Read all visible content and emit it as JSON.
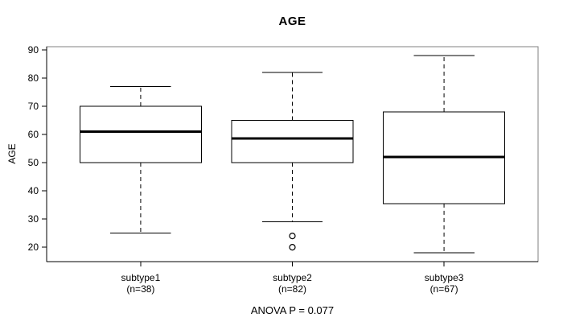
{
  "chart_data": {
    "type": "boxplot",
    "title": "AGE",
    "ylabel": "AGE",
    "xlabel": "",
    "annotation": "ANOVA P = 0.077",
    "ylim": [
      14.9,
      91.1
    ],
    "yticks": [
      20,
      30,
      40,
      50,
      60,
      70,
      80,
      90
    ],
    "xlim": [
      0.38,
      3.62
    ],
    "box_width": 0.8,
    "grid": false,
    "legend": "none",
    "series": [
      {
        "label": "subtype1",
        "sublabel": "(n=38)",
        "n": 38,
        "position": 1,
        "whisker_low": 25,
        "q1": 50,
        "median": 61,
        "q3": 70,
        "whisker_high": 77,
        "outliers": []
      },
      {
        "label": "subtype2",
        "sublabel": "(n=82)",
        "n": 82,
        "position": 2,
        "whisker_low": 29,
        "q1": 50,
        "median": 58.5,
        "q3": 65,
        "whisker_high": 82,
        "outliers": [
          24,
          20
        ]
      },
      {
        "label": "subtype3",
        "sublabel": "(n=67)",
        "n": 67,
        "position": 3,
        "whisker_low": 18,
        "q1": 35.5,
        "median": 52,
        "q3": 68,
        "whisker_high": 88,
        "outliers": []
      }
    ],
    "colors": {
      "line": "#000000",
      "frame": "#808080",
      "box_fill": "#ffffff",
      "background": "#ffffff"
    }
  }
}
